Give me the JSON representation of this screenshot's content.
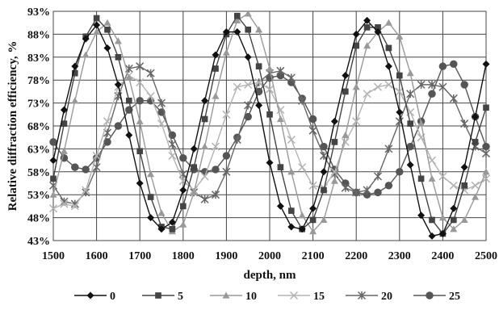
{
  "chart_data": {
    "type": "line",
    "xlabel": "depth, nm",
    "ylabel": "Relative diffraction efficiency, %",
    "xlim": [
      1500,
      2500
    ],
    "ylim": [
      43,
      93
    ],
    "x_ticks": [
      1500,
      1600,
      1700,
      1800,
      1900,
      2000,
      2100,
      2200,
      2300,
      2400,
      2500
    ],
    "x_tick_labels": [
      "1500",
      "1600",
      "1700",
      "1800",
      "1900",
      "2000",
      "2100",
      "2200",
      "2300",
      "2400",
      "2500"
    ],
    "y_ticks": [
      43,
      48,
      53,
      58,
      63,
      68,
      73,
      78,
      83,
      88,
      93
    ],
    "y_tick_labels": [
      "43%",
      "48%",
      "53%",
      "58%",
      "63%",
      "68%",
      "73%",
      "78%",
      "83%",
      "88%",
      "93%"
    ],
    "grid": true,
    "legend_position": "bottom",
    "x": [
      1500,
      1525,
      1550,
      1575,
      1600,
      1625,
      1650,
      1675,
      1700,
      1725,
      1750,
      1775,
      1800,
      1825,
      1850,
      1875,
      1900,
      1925,
      1950,
      1975,
      2000,
      2025,
      2050,
      2075,
      2100,
      2125,
      2150,
      2175,
      2200,
      2225,
      2250,
      2275,
      2300,
      2325,
      2350,
      2375,
      2400,
      2425,
      2450,
      2475,
      2500
    ],
    "series": [
      {
        "name": "0",
        "color": "#111111",
        "marker": "diamond",
        "values": [
          60.5,
          71.5,
          81.0,
          87.0,
          90.0,
          85.0,
          77.0,
          66.0,
          55.5,
          48.0,
          45.5,
          47.0,
          54.0,
          63.0,
          73.5,
          83.5,
          88.5,
          88.5,
          83.0,
          72.5,
          60.0,
          50.5,
          46.0,
          45.5,
          50.0,
          58.0,
          69.0,
          79.0,
          88.0,
          91.0,
          88.5,
          81.0,
          71.0,
          59.5,
          48.5,
          44.0,
          44.5,
          50.0,
          59.0,
          70.0,
          81.5
        ]
      },
      {
        "name": "5",
        "color": "#444444",
        "marker": "square",
        "values": [
          56.5,
          68.5,
          79.5,
          87.5,
          91.5,
          89.0,
          83.0,
          73.5,
          62.5,
          52.5,
          46.0,
          45.5,
          50.5,
          59.0,
          69.5,
          80.5,
          88.0,
          92.0,
          89.0,
          81.0,
          70.5,
          59.0,
          49.5,
          45.5,
          47.5,
          54.0,
          64.5,
          75.5,
          85.5,
          89.5,
          89.5,
          85.0,
          79.0,
          68.5,
          56.5,
          47.5,
          44.5,
          47.5,
          55.0,
          64.5,
          72.0
        ]
      },
      {
        "name": "10",
        "color": "#999999",
        "marker": "triangle",
        "values": [
          53.0,
          62.5,
          73.5,
          83.5,
          88.5,
          90.5,
          86.5,
          78.5,
          69.0,
          57.5,
          49.0,
          45.0,
          46.5,
          53.5,
          63.5,
          74.5,
          84.0,
          91.0,
          92.5,
          89.0,
          80.5,
          69.5,
          58.0,
          48.5,
          45.0,
          47.5,
          56.0,
          66.0,
          76.5,
          85.5,
          88.5,
          90.5,
          87.5,
          79.5,
          68.5,
          56.5,
          48.0,
          45.5,
          47.5,
          52.5,
          58.0
        ]
      },
      {
        "name": "15",
        "color": "#b3b3b3",
        "marker": "x",
        "values": [
          50.0,
          51.0,
          50.5,
          54.0,
          61.5,
          69.0,
          76.5,
          79.0,
          77.5,
          74.5,
          68.5,
          61.5,
          56.0,
          54.0,
          57.0,
          63.5,
          70.5,
          76.5,
          77.0,
          77.5,
          76.0,
          71.5,
          65.0,
          59.0,
          55.0,
          54.5,
          58.0,
          64.5,
          69.0,
          75.0,
          76.5,
          77.0,
          75.5,
          71.0,
          65.5,
          60.5,
          57.0,
          55.0,
          54.0,
          55.0,
          56.5
        ]
      },
      {
        "name": "20",
        "color": "#666666",
        "marker": "star",
        "values": [
          55.0,
          51.5,
          51.0,
          53.5,
          59.0,
          66.5,
          74.5,
          80.5,
          81.0,
          79.5,
          73.0,
          64.0,
          57.5,
          53.5,
          52.0,
          53.0,
          58.0,
          65.0,
          72.5,
          77.5,
          79.5,
          80.0,
          78.5,
          73.5,
          67.0,
          61.5,
          57.5,
          54.5,
          53.5,
          54.0,
          57.0,
          63.0,
          69.0,
          75.0,
          77.0,
          77.0,
          76.5,
          74.0,
          68.5,
          63.5,
          62.0
        ]
      },
      {
        "name": "25",
        "color": "#555555",
        "marker": "circle",
        "values": [
          64.5,
          61.0,
          59.0,
          58.5,
          61.0,
          64.5,
          68.0,
          71.5,
          73.5,
          73.5,
          71.0,
          66.0,
          61.0,
          58.5,
          58.0,
          58.5,
          61.5,
          65.5,
          70.0,
          75.5,
          78.5,
          79.0,
          77.5,
          74.0,
          69.5,
          63.5,
          58.5,
          55.5,
          53.5,
          53.0,
          53.5,
          55.0,
          58.0,
          63.5,
          69.0,
          75.0,
          81.0,
          81.5,
          77.0,
          70.0,
          63.5
        ]
      }
    ]
  }
}
